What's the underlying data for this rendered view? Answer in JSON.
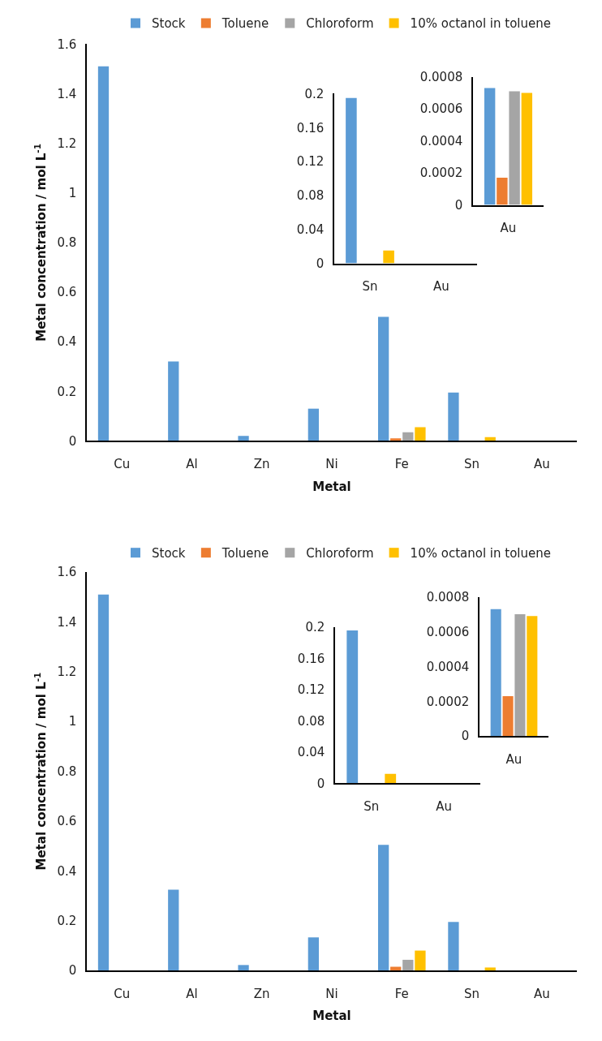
{
  "chart_data": [
    {
      "type": "bar",
      "xlabel": "Metal",
      "ylabel": "Metal concentration / mol L$^{-1}$",
      "categories": [
        "Cu",
        "Al",
        "Zn",
        "Ni",
        "Fe",
        "Sn",
        "Au"
      ],
      "ylim": [
        0,
        1.6
      ],
      "yticks": [
        0,
        0.2,
        0.4,
        0.6,
        0.8,
        1,
        1.2,
        1.4,
        1.6
      ],
      "legend": "top",
      "grid": false,
      "series": [
        {
          "name": "Stock",
          "color": "#5b9bd5",
          "values": [
            1.51,
            0.32,
            0.02,
            0.13,
            0.5,
            0.195,
            null
          ]
        },
        {
          "name": "Toluene",
          "color": "#ed7d31",
          "values": [
            null,
            null,
            null,
            null,
            0.01,
            null,
            null
          ]
        },
        {
          "name": "Chloroform",
          "color": "#a5a5a5",
          "values": [
            null,
            null,
            null,
            null,
            0.035,
            null,
            null
          ]
        },
        {
          "name": "10% octanol in toluene",
          "color": "#ffc000",
          "values": [
            null,
            null,
            null,
            null,
            0.055,
            0.015,
            null
          ]
        }
      ]
    },
    {
      "type": "bar",
      "categories": [
        "Sn",
        "Au"
      ],
      "ylim": [
        0,
        0.2
      ],
      "yticks": [
        0,
        0.04,
        0.08,
        0.12,
        0.16,
        0.2
      ],
      "grid": false,
      "series": [
        {
          "color": "#5b9bd5",
          "values": [
            0.195,
            null
          ]
        },
        {
          "color": "#ed7d31",
          "values": [
            null,
            null
          ]
        },
        {
          "color": "#a5a5a5",
          "values": [
            null,
            null
          ]
        },
        {
          "color": "#ffc000",
          "values": [
            0.015,
            null
          ]
        }
      ]
    },
    {
      "type": "bar",
      "categories": [
        "Au"
      ],
      "ylim": [
        0,
        0.0008
      ],
      "yticks": [
        0,
        0.0002,
        0.0004,
        0.0006,
        0.0008
      ],
      "grid": false,
      "series": [
        {
          "color": "#5b9bd5",
          "values": [
            0.00073
          ]
        },
        {
          "color": "#ed7d31",
          "values": [
            0.00017
          ]
        },
        {
          "color": "#a5a5a5",
          "values": [
            0.00071
          ]
        },
        {
          "color": "#ffc000",
          "values": [
            0.0007
          ]
        }
      ]
    },
    {
      "type": "bar",
      "xlabel": "Metal",
      "ylabel": "Metal concentration / mol L$^{-1}$",
      "categories": [
        "Cu",
        "Al",
        "Zn",
        "Ni",
        "Fe",
        "Sn",
        "Au"
      ],
      "ylim": [
        0,
        1.6
      ],
      "yticks": [
        0,
        0.2,
        0.4,
        0.6,
        0.8,
        1,
        1.2,
        1.4,
        1.6
      ],
      "legend": "top",
      "grid": false,
      "series": [
        {
          "name": "Stock",
          "color": "#5b9bd5",
          "values": [
            1.51,
            0.325,
            0.022,
            0.133,
            0.505,
            0.195,
            null
          ]
        },
        {
          "name": "Toluene",
          "color": "#ed7d31",
          "values": [
            null,
            null,
            null,
            null,
            0.015,
            null,
            null
          ]
        },
        {
          "name": "Chloroform",
          "color": "#a5a5a5",
          "values": [
            null,
            null,
            null,
            null,
            0.043,
            null,
            null
          ]
        },
        {
          "name": "10% octanol in toluene",
          "color": "#ffc000",
          "values": [
            null,
            null,
            null,
            null,
            0.08,
            0.012,
            null
          ]
        }
      ]
    },
    {
      "type": "bar",
      "categories": [
        "Sn",
        "Au"
      ],
      "ylim": [
        0,
        0.2
      ],
      "yticks": [
        0,
        0.04,
        0.08,
        0.12,
        0.16,
        0.2
      ],
      "grid": false,
      "series": [
        {
          "color": "#5b9bd5",
          "values": [
            0.196,
            null
          ]
        },
        {
          "color": "#ed7d31",
          "values": [
            null,
            null
          ]
        },
        {
          "color": "#a5a5a5",
          "values": [
            null,
            null
          ]
        },
        {
          "color": "#ffc000",
          "values": [
            0.012,
            null
          ]
        }
      ]
    },
    {
      "type": "bar",
      "categories": [
        "Au"
      ],
      "ylim": [
        0,
        0.0008
      ],
      "yticks": [
        0,
        0.0002,
        0.0004,
        0.0006,
        0.0008
      ],
      "grid": false,
      "series": [
        {
          "color": "#5b9bd5",
          "values": [
            0.00073
          ]
        },
        {
          "color": "#ed7d31",
          "values": [
            0.00023
          ]
        },
        {
          "color": "#a5a5a5",
          "values": [
            0.0007
          ]
        },
        {
          "color": "#ffc000",
          "values": [
            0.00069
          ]
        }
      ]
    }
  ]
}
